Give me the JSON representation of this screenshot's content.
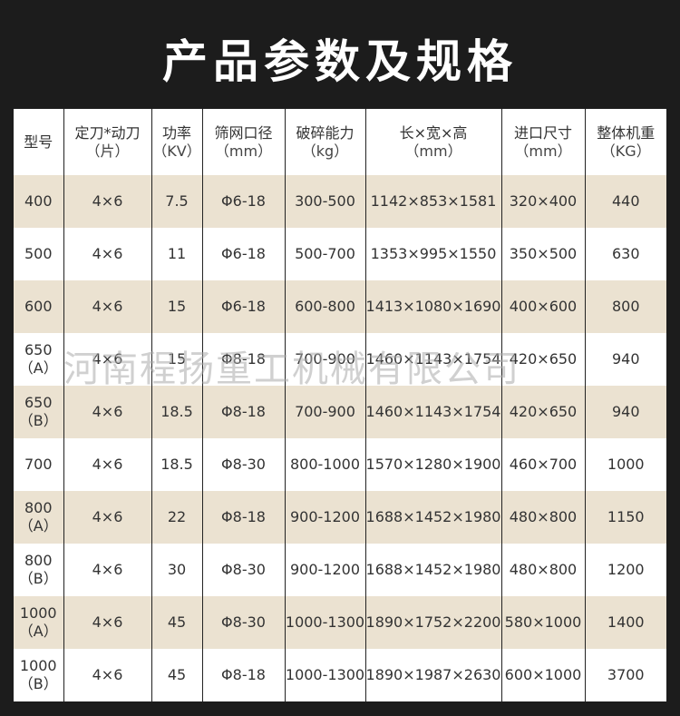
{
  "title": "产品参数及规格",
  "watermark": "河南程扬重工机械有限公司",
  "colors": {
    "background": "#1c1c1c",
    "row_alt": "#ebe2d1",
    "row": "#ffffff"
  },
  "headers": [
    {
      "label": "型号",
      "unit": ""
    },
    {
      "label": "定刀*动刀",
      "unit": "（片）"
    },
    {
      "label": "功率",
      "unit": "（KV）"
    },
    {
      "label": "筛网口径",
      "unit": "（mm）"
    },
    {
      "label": "破碎能力",
      "unit": "（kg）"
    },
    {
      "label": "长×宽×高",
      "unit": "（mm）"
    },
    {
      "label": "进口尺寸",
      "unit": "（mm）"
    },
    {
      "label": "整体机重",
      "unit": "（KG）"
    }
  ],
  "rows": [
    {
      "model": "400",
      "model_sub": "",
      "blades": "4×6",
      "power": "7.5",
      "screen": "Φ6-18",
      "capacity": "300-500",
      "dims": "1142×853×1581",
      "inlet": "320×400",
      "weight": "440"
    },
    {
      "model": "500",
      "model_sub": "",
      "blades": "4×6",
      "power": "11",
      "screen": "Φ6-18",
      "capacity": "500-700",
      "dims": "1353×995×1550",
      "inlet": "350×500",
      "weight": "630"
    },
    {
      "model": "600",
      "model_sub": "",
      "blades": "4×6",
      "power": "15",
      "screen": "Φ6-18",
      "capacity": "600-800",
      "dims": "1413×1080×1690",
      "inlet": "400×600",
      "weight": "800"
    },
    {
      "model": "650",
      "model_sub": "（A）",
      "blades": "4×6",
      "power": "15",
      "screen": "Φ8-18",
      "capacity": "700-900",
      "dims": "1460×1143×1754",
      "inlet": "420×650",
      "weight": "940"
    },
    {
      "model": "650",
      "model_sub": "（B）",
      "blades": "4×6",
      "power": "18.5",
      "screen": "Φ8-18",
      "capacity": "700-900",
      "dims": "1460×1143×1754",
      "inlet": "420×650",
      "weight": "940"
    },
    {
      "model": "700",
      "model_sub": "",
      "blades": "4×6",
      "power": "18.5",
      "screen": "Φ8-30",
      "capacity": "800-1000",
      "dims": "1570×1280×1900",
      "inlet": "460×700",
      "weight": "1000"
    },
    {
      "model": "800",
      "model_sub": "（A）",
      "blades": "4×6",
      "power": "22",
      "screen": "Φ8-18",
      "capacity": "900-1200",
      "dims": "1688×1452×1980",
      "inlet": "480×800",
      "weight": "1150"
    },
    {
      "model": "800",
      "model_sub": "（B）",
      "blades": "4×6",
      "power": "30",
      "screen": "Φ8-30",
      "capacity": "900-1200",
      "dims": "1688×1452×1980",
      "inlet": "480×800",
      "weight": "1200"
    },
    {
      "model": "1000",
      "model_sub": "（A）",
      "blades": "4×6",
      "power": "45",
      "screen": "Φ8-30",
      "capacity": "1000-1300",
      "dims": "1890×1752×2200",
      "inlet": "580×1000",
      "weight": "1400"
    },
    {
      "model": "1000",
      "model_sub": "（B）",
      "blades": "4×6",
      "power": "45",
      "screen": "Φ8-18",
      "capacity": "1000-1300",
      "dims": "1890×1987×2630",
      "inlet": "600×1000",
      "weight": "3700"
    }
  ]
}
